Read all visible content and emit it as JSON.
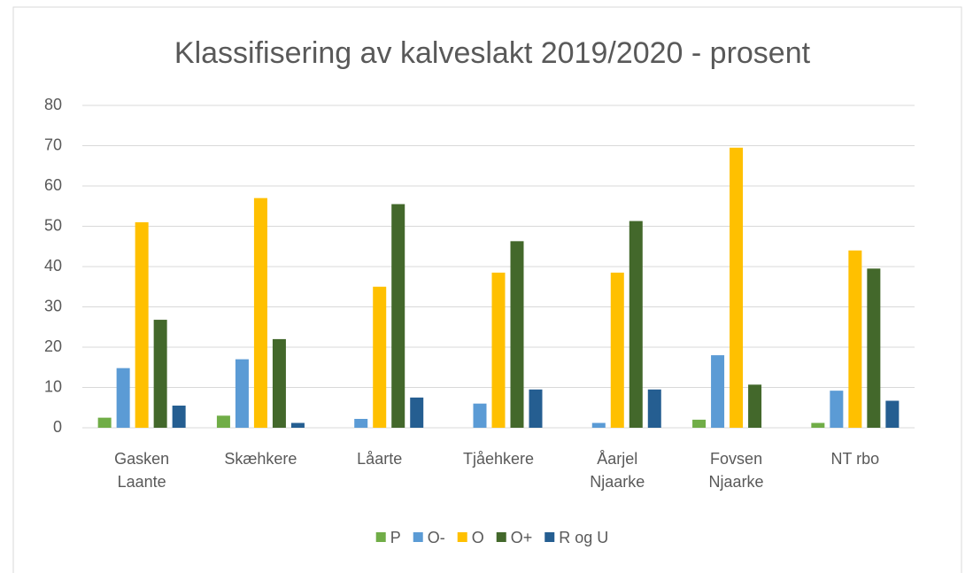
{
  "chart_data": {
    "type": "bar",
    "title": "Klassifisering av kalveslakt 2019/2020 - prosent",
    "categories": [
      "Gasken Laante",
      "Skæhkere",
      "Låarte",
      "Tjåehkere",
      "Åarjel Njaarke",
      "Fovsen Njaarke",
      "NT rbo"
    ],
    "series": [
      {
        "name": "P",
        "color": "#70ad47",
        "values": [
          2.5,
          3,
          0,
          0,
          0,
          2,
          1.2
        ]
      },
      {
        "name": "O-",
        "color": "#5b9bd5",
        "values": [
          14.8,
          17,
          2.2,
          6,
          1.2,
          18,
          9.2
        ]
      },
      {
        "name": "O",
        "color": "#ffc000",
        "values": [
          51,
          57,
          35,
          38.5,
          38.5,
          69.5,
          44
        ]
      },
      {
        "name": "O+",
        "color": "#43682b",
        "values": [
          26.8,
          22,
          55.5,
          46.3,
          51.3,
          10.7,
          39.5
        ]
      },
      {
        "name": "R og U",
        "color": "#255e91",
        "values": [
          5.5,
          1.2,
          7.5,
          9.5,
          9.5,
          0,
          6.7
        ]
      }
    ],
    "ylim": [
      0,
      80
    ],
    "yticks": [
      0,
      10,
      20,
      30,
      40,
      50,
      60,
      70,
      80
    ],
    "grid": true,
    "legend": "bottom"
  }
}
